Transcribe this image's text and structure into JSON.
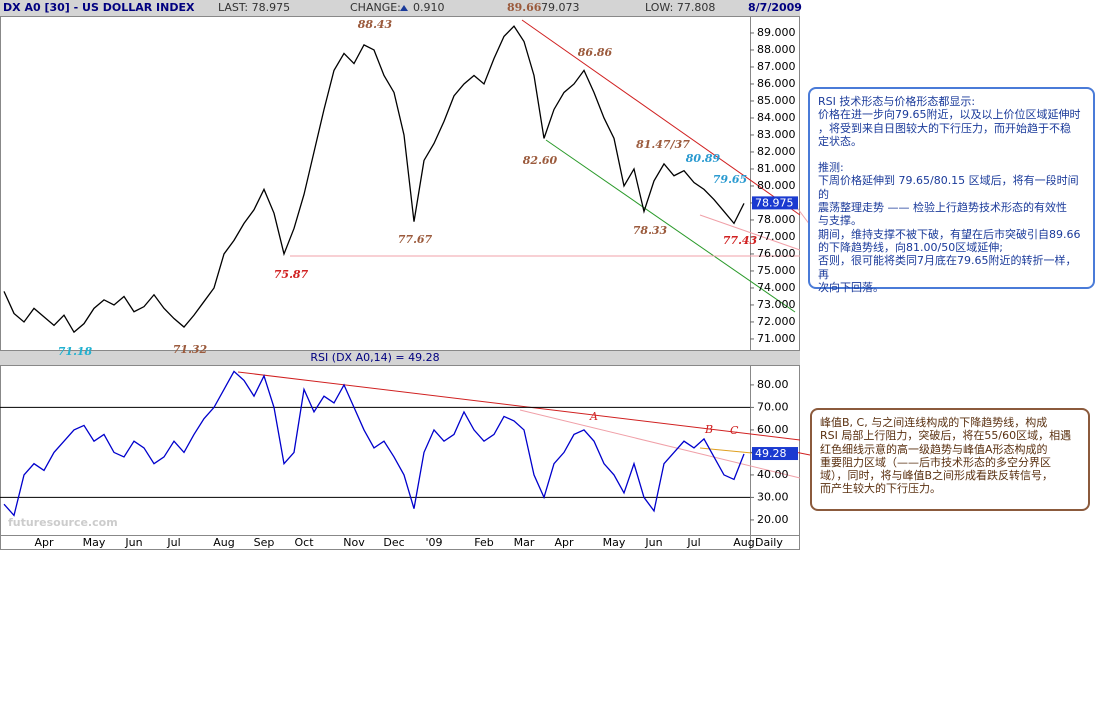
{
  "header": {
    "title": "DX A0 [30] - US DOLLAR INDEX",
    "last": "LAST: 78.975",
    "change_label": "CHANGE:",
    "change": "0.910",
    "high": "89.66",
    "open": "79.073",
    "low": "LOW: 77.808",
    "date": "8/7/2009"
  },
  "chart_data": [
    {
      "type": "line",
      "categories": [
        null,
        null,
        null,
        null,
        "Apr",
        null,
        null,
        null,
        null,
        "May",
        null,
        null,
        null,
        "Jun",
        null,
        null,
        null,
        "Jul",
        null,
        null,
        null,
        null,
        "Aug",
        null,
        null,
        null,
        "Sep",
        null,
        null,
        null,
        "Oct",
        null,
        null,
        null,
        null,
        "Nov",
        null,
        null,
        null,
        "Dec",
        null,
        null,
        null,
        "'09",
        null,
        null,
        null,
        null,
        "Feb",
        null,
        null,
        null,
        "Mar",
        null,
        null,
        null,
        "Apr",
        null,
        null,
        null,
        null,
        "May",
        null,
        null,
        null,
        "Jun",
        null,
        null,
        null,
        "Jul",
        null,
        null,
        null,
        null,
        "Aug"
      ],
      "values": [
        73.8,
        72.5,
        72.0,
        72.8,
        72.3,
        71.8,
        72.4,
        71.4,
        71.9,
        72.8,
        73.3,
        73.0,
        73.5,
        72.6,
        72.9,
        73.6,
        72.8,
        72.2,
        71.7,
        72.4,
        73.2,
        74.0,
        76.0,
        76.8,
        77.8,
        78.6,
        79.8,
        78.4,
        76.0,
        77.5,
        79.5,
        82.0,
        84.5,
        86.8,
        87.8,
        87.2,
        88.3,
        88.0,
        86.5,
        85.5,
        83.0,
        77.9,
        81.5,
        82.5,
        83.8,
        85.3,
        86.0,
        86.5,
        86.0,
        87.5,
        88.8,
        89.4,
        88.5,
        86.5,
        82.8,
        84.5,
        85.5,
        86.0,
        86.8,
        85.5,
        84.0,
        82.8,
        80.0,
        81.0,
        78.5,
        80.3,
        81.3,
        80.6,
        80.9,
        80.2,
        79.8,
        79.2,
        78.5,
        77.8,
        78.975
      ],
      "color": "#000000",
      "ylim": [
        70.35,
        89.94
      ],
      "yticks": [
        {
          "value": 71,
          "label": "71.000"
        },
        {
          "value": 72,
          "label": "72.000"
        },
        {
          "value": 73,
          "label": "73.000"
        },
        {
          "value": 74,
          "label": "74.000"
        },
        {
          "value": 75,
          "label": "75.000"
        },
        {
          "value": 76,
          "label": "76.000"
        },
        {
          "value": 77,
          "label": "77.000"
        },
        {
          "value": 78,
          "label": "78.000"
        },
        {
          "value": 79,
          "label": "79.000"
        },
        {
          "value": 80,
          "label": "80.000"
        },
        {
          "value": 81,
          "label": "81.000"
        },
        {
          "value": 82,
          "label": "82.000"
        },
        {
          "value": 83,
          "label": "83.000"
        },
        {
          "value": 84,
          "label": "84.000"
        },
        {
          "value": 85,
          "label": "85.000"
        },
        {
          "value": 86,
          "label": "86.000"
        },
        {
          "value": 87,
          "label": "87.000"
        },
        {
          "value": 88,
          "label": "88.000"
        },
        {
          "value": 89,
          "label": "89.000"
        }
      ],
      "current": 78.975,
      "annotations": [
        "88.43",
        "86.86",
        "82.60",
        "81.47/37",
        "80.89",
        "79.65",
        "78.33",
        "77.43",
        "77.67",
        "75.87",
        "71.18",
        "71.32"
      ]
    },
    {
      "type": "line",
      "title": "RSI (DX A0,14) = 49.28",
      "values": [
        27,
        22,
        40,
        45,
        42,
        50,
        55,
        60,
        62,
        55,
        58,
        50,
        48,
        55,
        52,
        45,
        48,
        55,
        50,
        58,
        65,
        70,
        78,
        86,
        82,
        75,
        84,
        70,
        45,
        50,
        78,
        68,
        75,
        72,
        80,
        70,
        60,
        52,
        55,
        48,
        40,
        25,
        50,
        60,
        55,
        58,
        68,
        60,
        55,
        58,
        66,
        64,
        60,
        40,
        30,
        45,
        50,
        58,
        60,
        55,
        45,
        40,
        32,
        45,
        30,
        24,
        45,
        50,
        55,
        52,
        56,
        48,
        40,
        38,
        49.28
      ],
      "color": "#0000cc",
      "ylim": [
        13.3,
        88.4
      ],
      "yticks": [
        {
          "value": 20,
          "label": "20.00"
        },
        {
          "value": 30,
          "label": "30.00"
        },
        {
          "value": 40,
          "label": "40.00"
        },
        {
          "value": 50,
          "label": "50.00"
        },
        {
          "value": 60,
          "label": "60.00"
        },
        {
          "value": 70,
          "label": "70.00"
        },
        {
          "value": 80,
          "label": "80.00"
        }
      ],
      "levels": [
        70,
        30
      ],
      "current": 49.28,
      "annotations": [
        "A",
        "B",
        "C"
      ],
      "x_note": "Daily"
    }
  ],
  "watermark": "futuresource.com",
  "notes": [
    {
      "lines": [
        "RSI 技术形态与价格形态都显示:",
        "价格在进一步向79.65附近，以及以上价位区域延伸时",
        "，将受到来自日图较大的下行压力，而开始趋于不稳",
        "定状态。"
      ]
    },
    {
      "lines": [
        "推测:",
        "下周价格延伸到 79.65/80.15 区域后，将有一段时间的",
        "震荡整理走势 —— 检验上行趋势技术形态的有效性",
        "与支撑。",
        "期间，维持支撑不被下破，有望在后市突破引自89.66",
        "的下降趋势线，向81.00/50区域延伸;",
        "否则，很可能将类同7月底在79.65附近的转折一样，再",
        "次向下回落。"
      ]
    },
    {
      "lines": [
        "峰值B, C, 与之间连线构成的下降趋势线，构成",
        "RSI 局部上行阻力，突破后，将在55/60区域，相遇",
        "红色细线示意的高一级趋势与峰值A形态构成的",
        "重要阻力区域（——后市技术形态的多空分界区",
        "域），同时，将与峰值B之间形成看跌反转信号，",
        "而产生较大的下行压力。"
      ]
    }
  ]
}
